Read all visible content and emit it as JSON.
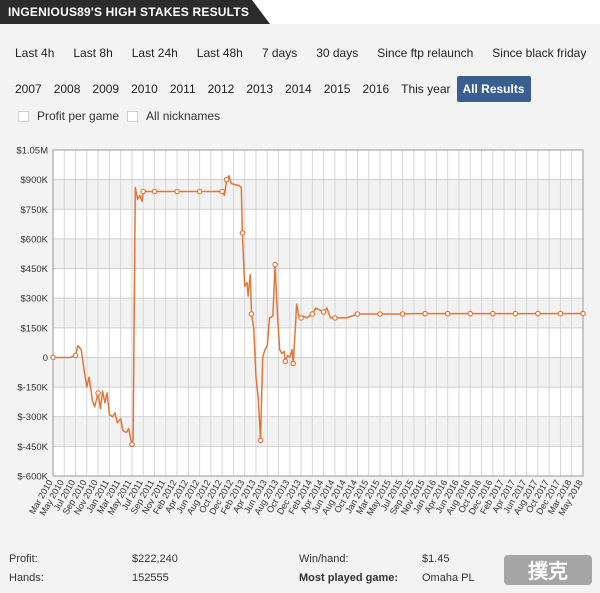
{
  "header": {
    "title": "INGENIOUS89'S HIGH STAKES RESULTS"
  },
  "filters": {
    "row1": [
      "Last 4h",
      "Last 8h",
      "Last 24h",
      "Last 48h",
      "7 days",
      "30 days",
      "Since ftp relaunch",
      "Since black friday"
    ],
    "row2": [
      "2007",
      "2008",
      "2009",
      "2010",
      "2011",
      "2012",
      "2013",
      "2014",
      "2015",
      "2016",
      "This year",
      "All Results"
    ],
    "active": "All Results"
  },
  "checkboxes": {
    "profit_per_game": "Profit per game",
    "all_nicknames": "All nicknames"
  },
  "stats": {
    "profit_label": "Profit:",
    "profit_value": "$222,240",
    "hands_label": "Hands:",
    "hands_value": "152555",
    "winhand_label": "Win/hand:",
    "winhand_value": "$1.45",
    "most_played_label": "Most played game:",
    "most_played_value": "Omaha PL"
  },
  "watermark_text": "撲克",
  "colors": {
    "line": "#e0773a",
    "active_button": "#3a5f8f",
    "header_bg": "#2b2b2b"
  },
  "chart_data": {
    "type": "line",
    "title": "",
    "xlabel": "",
    "ylabel": "",
    "ylim": [
      -600000,
      1050000
    ],
    "yticks": [
      {
        "v": 1050000,
        "label": "$1.05M"
      },
      {
        "v": 900000,
        "label": "$900K"
      },
      {
        "v": 750000,
        "label": "$750K"
      },
      {
        "v": 600000,
        "label": "$600K"
      },
      {
        "v": 450000,
        "label": "$450K"
      },
      {
        "v": 300000,
        "label": "$300K"
      },
      {
        "v": 150000,
        "label": "$150K"
      },
      {
        "v": 0,
        "label": "0"
      },
      {
        "v": -150000,
        "label": "$-150K"
      },
      {
        "v": -300000,
        "label": "$-300K"
      },
      {
        "v": -450000,
        "label": "$-450K"
      },
      {
        "v": -600000,
        "label": "$-600K"
      }
    ],
    "xticks": [
      "Mar 2010",
      "May 2010",
      "Jul 2010",
      "Sep 2010",
      "Nov 2010",
      "Jan 2011",
      "Mar 2011",
      "May 2011",
      "Jul 2011",
      "Sep 2011",
      "Nov 2011",
      "Feb 2012",
      "Apr 2012",
      "Jun 2012",
      "Aug 2012",
      "Oct 2012",
      "Dec 2012",
      "Feb 2013",
      "Apr 2013",
      "Jun 2013",
      "Aug 2013",
      "Oct 2013",
      "Dec 2013",
      "Feb 2014",
      "Apr 2014",
      "Jun 2014",
      "Aug 2014",
      "Oct 2014",
      "Jan 2015",
      "Mar 2015",
      "May 2015",
      "Jul 2015",
      "Sep 2015",
      "Nov 2015",
      "Jan 2016",
      "Apr 2016",
      "Jun 2016",
      "Aug 2016",
      "Oct 2016",
      "Dec 2016",
      "Feb 2017",
      "Apr 2017",
      "Jun 2017",
      "Aug 2017",
      "Oct 2017",
      "Dec 2017",
      "Mar 2018",
      "May 2018"
    ],
    "grid": true,
    "series": [
      {
        "values": [
          [
            0,
            0
          ],
          [
            1,
            0
          ],
          [
            1.5,
            0
          ],
          [
            2,
            10000
          ],
          [
            2.2,
            60000
          ],
          [
            2.5,
            40000
          ],
          [
            2.8,
            -80000
          ],
          [
            3,
            -150000
          ],
          [
            3.2,
            -100000
          ],
          [
            3.5,
            -220000
          ],
          [
            3.7,
            -250000
          ],
          [
            4,
            -180000
          ],
          [
            4.2,
            -260000
          ],
          [
            4.4,
            -170000
          ],
          [
            4.6,
            -230000
          ],
          [
            4.8,
            -180000
          ],
          [
            5,
            -290000
          ],
          [
            5.3,
            -300000
          ],
          [
            5.5,
            -280000
          ],
          [
            5.7,
            -330000
          ],
          [
            6,
            -310000
          ],
          [
            6.2,
            -370000
          ],
          [
            6.5,
            -380000
          ],
          [
            6.7,
            -360000
          ],
          [
            7,
            -440000
          ],
          [
            7.1,
            -420000
          ],
          [
            7.3,
            860000
          ],
          [
            7.5,
            800000
          ],
          [
            7.7,
            820000
          ],
          [
            7.9,
            790000
          ],
          [
            8,
            840000
          ],
          [
            8.5,
            840000
          ],
          [
            9,
            840000
          ],
          [
            10,
            840000
          ],
          [
            11,
            840000
          ],
          [
            12,
            840000
          ],
          [
            13,
            840000
          ],
          [
            14,
            840000
          ],
          [
            15,
            840000
          ],
          [
            15.2,
            820000
          ],
          [
            15.4,
            900000
          ],
          [
            15.6,
            920000
          ],
          [
            15.8,
            880000
          ],
          [
            16.5,
            870000
          ],
          [
            16.7,
            860000
          ],
          [
            16.8,
            630000
          ],
          [
            17,
            360000
          ],
          [
            17.2,
            380000
          ],
          [
            17.3,
            310000
          ],
          [
            17.5,
            420000
          ],
          [
            17.6,
            220000
          ],
          [
            17.8,
            150000
          ],
          [
            18,
            -100000
          ],
          [
            18.2,
            -200000
          ],
          [
            18.4,
            -420000
          ],
          [
            18.6,
            0
          ],
          [
            18.8,
            40000
          ],
          [
            19,
            60000
          ],
          [
            19.2,
            200000
          ],
          [
            19.5,
            210000
          ],
          [
            19.7,
            470000
          ],
          [
            19.9,
            220000
          ],
          [
            20.1,
            40000
          ],
          [
            20.3,
            20000
          ],
          [
            20.5,
            30000
          ],
          [
            20.6,
            -20000
          ],
          [
            20.8,
            10000
          ],
          [
            21,
            0
          ],
          [
            21.2,
            40000
          ],
          [
            21.3,
            -30000
          ],
          [
            21.5,
            150000
          ],
          [
            21.6,
            270000
          ],
          [
            21.8,
            210000
          ],
          [
            22,
            200000
          ],
          [
            22.2,
            210000
          ],
          [
            22.5,
            200000
          ],
          [
            23,
            220000
          ],
          [
            23.3,
            250000
          ],
          [
            24,
            230000
          ],
          [
            24.3,
            250000
          ],
          [
            24.6,
            200000
          ],
          [
            25,
            200000
          ],
          [
            25.5,
            200000
          ],
          [
            26,
            200000
          ],
          [
            26.5,
            210000
          ],
          [
            27,
            220000
          ],
          [
            28,
            220000
          ],
          [
            29,
            220000
          ],
          [
            30,
            220000
          ],
          [
            31,
            220000
          ],
          [
            32,
            222000
          ],
          [
            33,
            222000
          ],
          [
            34,
            222000
          ],
          [
            35,
            222000
          ],
          [
            36,
            222000
          ],
          [
            37,
            222000
          ],
          [
            38,
            222000
          ],
          [
            39,
            222000
          ],
          [
            40,
            222000
          ],
          [
            41,
            222000
          ],
          [
            42,
            222000
          ],
          [
            43,
            222000
          ],
          [
            44,
            222000
          ],
          [
            45,
            222000
          ],
          [
            46,
            222000
          ],
          [
            47,
            222240
          ]
        ],
        "markers": [
          [
            0,
            0
          ],
          [
            2,
            10000
          ],
          [
            4,
            -180000
          ],
          [
            7,
            -440000
          ],
          [
            8,
            840000
          ],
          [
            9,
            840000
          ],
          [
            11,
            840000
          ],
          [
            13,
            840000
          ],
          [
            15,
            840000
          ],
          [
            15.4,
            900000
          ],
          [
            16.8,
            630000
          ],
          [
            17.6,
            220000
          ],
          [
            18.4,
            -420000
          ],
          [
            19.7,
            470000
          ],
          [
            20.6,
            -20000
          ],
          [
            21.3,
            -30000
          ],
          [
            22,
            200000
          ],
          [
            23,
            220000
          ],
          [
            24,
            230000
          ],
          [
            25,
            200000
          ],
          [
            27,
            220000
          ],
          [
            29,
            220000
          ],
          [
            31,
            220000
          ],
          [
            33,
            222000
          ],
          [
            35,
            222000
          ],
          [
            37,
            222000
          ],
          [
            39,
            222000
          ],
          [
            41,
            222000
          ],
          [
            43,
            222000
          ],
          [
            45,
            222000
          ],
          [
            47,
            222240
          ]
        ]
      }
    ]
  }
}
